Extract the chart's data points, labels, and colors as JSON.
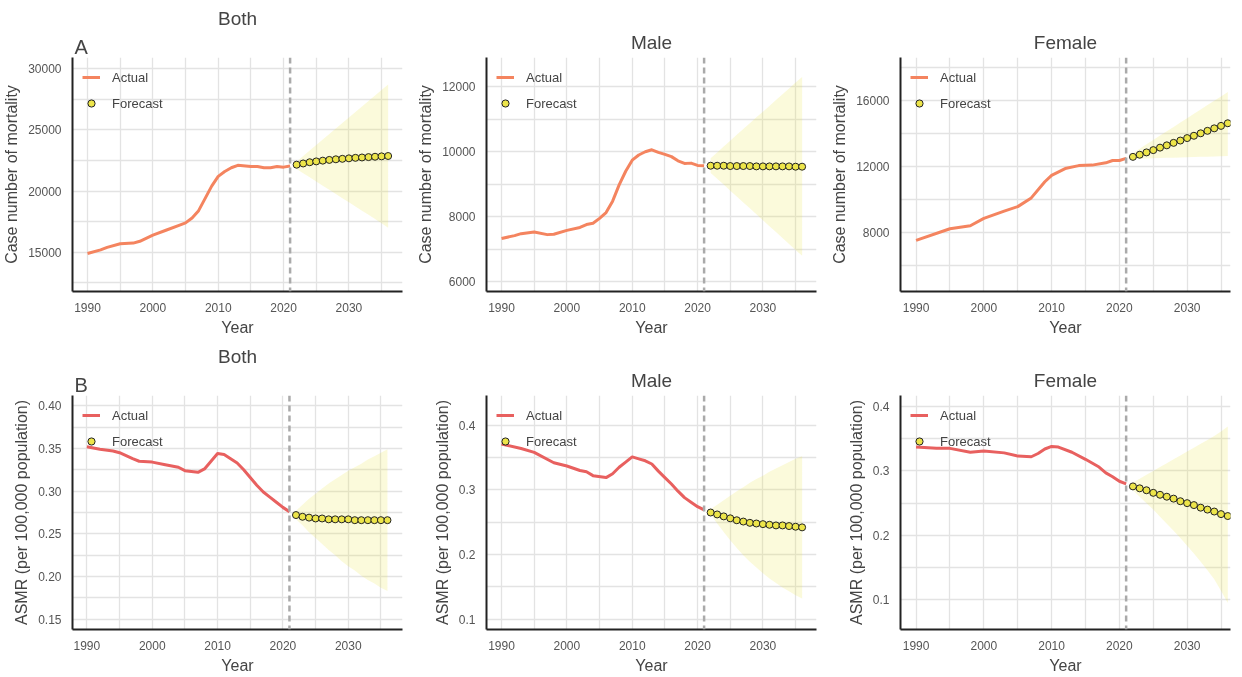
{
  "chart_data": [
    {
      "type": "line",
      "title": "Both",
      "xlabel": "Year",
      "ylabel": "Case number of mortality",
      "annotations": [
        "A"
      ],
      "grid": true,
      "legend": "top left",
      "xlim": [
        1987.7,
        2038.2
      ],
      "ylim": [
        11800,
        30900
      ],
      "xticks": [
        1990,
        {
          "value": 1995,
          "label": null
        },
        2000,
        {
          "value": 2005,
          "label": null
        },
        2010,
        {
          "value": 2015,
          "label": null
        },
        2020,
        {
          "value": 2025,
          "label": null
        },
        2030,
        {
          "value": 2035,
          "label": null
        }
      ],
      "yticks": [
        {
          "value": 12500,
          "label": null
        },
        15000,
        {
          "value": 17500,
          "label": null
        },
        20000,
        {
          "value": 22500,
          "label": null
        },
        25000,
        {
          "value": 27500,
          "label": null
        },
        30000
      ],
      "ref_lines": [
        {
          "axis": "x",
          "value": 2021,
          "color": "#aaaaaa",
          "line_style": "dashed"
        }
      ],
      "series": [
        {
          "name": "Actual",
          "color": "#f4845f",
          "x": [
            1990,
            1992,
            1993,
            1995,
            1997,
            1998,
            2000,
            2002,
            2004,
            2005,
            2006,
            2007,
            2008,
            2009,
            2010,
            2011,
            2012,
            2013,
            2015,
            2016,
            2017,
            2018,
            2019,
            2020,
            2021
          ],
          "values": [
            14900,
            15200,
            15400,
            15700,
            15750,
            15900,
            16400,
            16800,
            17200,
            17400,
            17800,
            18400,
            19400,
            20400,
            21200,
            21600,
            21900,
            22100,
            22000,
            22000,
            21900,
            21900,
            22000,
            21950,
            22050
          ]
        },
        {
          "name": "Forecast",
          "type": "scatter",
          "marker": "circle",
          "color": "#ede54a",
          "x": [
            2022,
            2023,
            2024,
            2025,
            2026,
            2027,
            2028,
            2029,
            2030,
            2031,
            2032,
            2033,
            2034,
            2035,
            2036
          ],
          "values": [
            22150,
            22250,
            22350,
            22420,
            22480,
            22540,
            22590,
            22630,
            22670,
            22710,
            22740,
            22770,
            22800,
            22830,
            22860
          ],
          "upper": [
            22400,
            22850,
            23300,
            23750,
            24200,
            24650,
            25100,
            25550,
            26000,
            26450,
            26900,
            27350,
            27800,
            28250,
            28700
          ],
          "lower": [
            21800,
            21460,
            21120,
            20780,
            20440,
            20100,
            19760,
            19420,
            19080,
            18740,
            18400,
            18060,
            17720,
            17380,
            17000
          ]
        }
      ]
    },
    {
      "type": "line",
      "title": "Male",
      "xlabel": "Year",
      "ylabel": "Case number of mortality",
      "grid": true,
      "legend": "top left",
      "xlim": [
        1987.7,
        2038.2
      ],
      "ylim": [
        5700,
        12900
      ],
      "xticks": [
        1990,
        {
          "value": 1995,
          "label": null
        },
        2000,
        {
          "value": 2005,
          "label": null
        },
        2010,
        {
          "value": 2015,
          "label": null
        },
        2020,
        {
          "value": 2025,
          "label": null
        },
        2030,
        {
          "value": 2035,
          "label": null
        }
      ],
      "yticks": [
        6000,
        {
          "value": 7000,
          "label": null
        },
        8000,
        {
          "value": 9000,
          "label": null
        },
        10000,
        {
          "value": 11000,
          "label": null
        },
        12000
      ],
      "ref_lines": [
        {
          "axis": "x",
          "value": 2021,
          "color": "#aaaaaa",
          "line_style": "dashed"
        }
      ],
      "series": [
        {
          "name": "Actual",
          "color": "#f4845f",
          "x": [
            1990,
            1992,
            1993,
            1995,
            1997,
            1998,
            2000,
            2002,
            2003,
            2004,
            2005,
            2006,
            2007,
            2008,
            2009,
            2010,
            2011,
            2012,
            2013,
            2014,
            2015,
            2016,
            2017,
            2018,
            2019,
            2020,
            2021
          ],
          "values": [
            7330,
            7420,
            7480,
            7530,
            7450,
            7460,
            7580,
            7670,
            7760,
            7800,
            7950,
            8130,
            8480,
            8980,
            9400,
            9740,
            9900,
            10000,
            10060,
            9980,
            9920,
            9850,
            9720,
            9640,
            9650,
            9580,
            9570
          ]
        },
        {
          "name": "Forecast",
          "type": "scatter",
          "marker": "circle",
          "color": "#ede54a",
          "x": [
            2022,
            2023,
            2024,
            2025,
            2026,
            2027,
            2028,
            2029,
            2030,
            2031,
            2032,
            2033,
            2034,
            2035,
            2036
          ],
          "values": [
            9570,
            9570,
            9570,
            9560,
            9560,
            9560,
            9560,
            9550,
            9550,
            9550,
            9550,
            9550,
            9550,
            9540,
            9540
          ],
          "upper": [
            9800,
            9980,
            10160,
            10340,
            10520,
            10700,
            10880,
            11060,
            11230,
            11410,
            11590,
            11770,
            11950,
            12130,
            12300
          ],
          "lower": [
            9350,
            9170,
            8990,
            8800,
            8620,
            8440,
            8260,
            8080,
            7890,
            7710,
            7530,
            7350,
            7160,
            6980,
            6800
          ]
        }
      ]
    },
    {
      "type": "line",
      "title": "Female",
      "xlabel": "Year",
      "ylabel": "Case number of mortality",
      "grid": true,
      "legend": "top left",
      "xlim": [
        1987.7,
        2036.4
      ],
      "ylim": [
        4400,
        18600
      ],
      "xticks": [
        1990,
        {
          "value": 1995,
          "label": null
        },
        2000,
        {
          "value": 2005,
          "label": null
        },
        2010,
        {
          "value": 2015,
          "label": null
        },
        2020,
        {
          "value": 2025,
          "label": null
        },
        2030,
        {
          "value": 2035,
          "label": null
        }
      ],
      "yticks": [
        {
          "value": 6000,
          "label": null
        },
        8000,
        {
          "value": 10000,
          "label": null
        },
        12000,
        {
          "value": 14000,
          "label": null
        },
        16000,
        {
          "value": 18000,
          "label": null
        }
      ],
      "ref_lines": [
        {
          "axis": "x",
          "value": 2021,
          "color": "#aaaaaa",
          "line_style": "dashed"
        }
      ],
      "series": [
        {
          "name": "Actual",
          "color": "#f4845f",
          "x": [
            1990,
            1995,
            1998,
            2000,
            2003,
            2005,
            2007,
            2009,
            2010,
            2012,
            2014,
            2016,
            2018,
            2019,
            2020,
            2021
          ],
          "values": [
            7500,
            8210,
            8390,
            8840,
            9280,
            9550,
            10080,
            11060,
            11450,
            11860,
            12040,
            12070,
            12210,
            12350,
            12350,
            12480
          ]
        },
        {
          "name": "Forecast",
          "type": "scatter",
          "marker": "circle",
          "color": "#ede54a",
          "x": [
            2022,
            2023,
            2024,
            2025,
            2026,
            2027,
            2028,
            2029,
            2030,
            2031,
            2032,
            2033,
            2034,
            2035,
            2036
          ],
          "values": [
            12570,
            12700,
            12840,
            12980,
            13130,
            13270,
            13420,
            13560,
            13710,
            13850,
            14000,
            14150,
            14300,
            14450,
            14610
          ],
          "upper": [
            12800,
            13060,
            13330,
            13590,
            13860,
            14120,
            14390,
            14650,
            14920,
            15180,
            15450,
            15710,
            15980,
            16240,
            16500
          ],
          "lower": [
            12450,
            12460,
            12470,
            12490,
            12500,
            12510,
            12520,
            12530,
            12550,
            12560,
            12570,
            12580,
            12590,
            12610,
            12620
          ]
        }
      ]
    },
    {
      "type": "line",
      "title": "Both",
      "xlabel": "Year",
      "ylabel": "ASMR (per 100,000 population)",
      "annotations": [
        "B"
      ],
      "grid": true,
      "legend": "top left",
      "xlim": [
        1987.8,
        2038.3
      ],
      "ylim": [
        0.138,
        0.412
      ],
      "xticks": [
        1990,
        {
          "value": 1995,
          "label": null
        },
        2000,
        {
          "value": 2005,
          "label": null
        },
        2010,
        {
          "value": 2015,
          "label": null
        },
        2020,
        {
          "value": 2025,
          "label": null
        },
        2030,
        {
          "value": 2035,
          "label": null
        }
      ],
      "yticks": [
        0.15,
        {
          "value": 0.175,
          "label": null
        },
        {
          "value": 0.2,
          "label": "0.20"
        },
        {
          "value": 0.225,
          "label": null
        },
        0.25,
        {
          "value": 0.275,
          "label": null
        },
        {
          "value": 0.3,
          "label": "0.30"
        },
        {
          "value": 0.325,
          "label": null
        },
        0.35,
        {
          "value": 0.375,
          "label": null
        },
        {
          "value": 0.4,
          "label": "0.40"
        }
      ],
      "ref_lines": [
        {
          "axis": "x",
          "value": 2021,
          "color": "#aaaaaa",
          "line_style": "dashed"
        }
      ],
      "series": [
        {
          "name": "Actual",
          "color": "#e8605f",
          "x": [
            1990,
            1992,
            1994,
            1995,
            1997,
            1998,
            2000,
            2002,
            2004,
            2005,
            2007,
            2008,
            2009,
            2010,
            2011,
            2012,
            2013,
            2014,
            2015,
            2016,
            2017,
            2018,
            2019,
            2020,
            2021
          ],
          "values": [
            0.352,
            0.349,
            0.347,
            0.345,
            0.338,
            0.335,
            0.334,
            0.331,
            0.328,
            0.324,
            0.322,
            0.326,
            0.335,
            0.344,
            0.343,
            0.338,
            0.333,
            0.325,
            0.316,
            0.307,
            0.299,
            0.293,
            0.287,
            0.281,
            0.276
          ]
        },
        {
          "name": "Forecast",
          "type": "scatter",
          "marker": "circle",
          "color": "#ede54a",
          "x": [
            2022,
            2023,
            2024,
            2025,
            2026,
            2027,
            2028,
            2029,
            2030,
            2031,
            2032,
            2033,
            2034,
            2035,
            2036
          ],
          "values": [
            0.272,
            0.27,
            0.269,
            0.268,
            0.268,
            0.267,
            0.267,
            0.267,
            0.267,
            0.266,
            0.266,
            0.266,
            0.266,
            0.266,
            0.266
          ],
          "upper": [
            0.277,
            0.284,
            0.291,
            0.297,
            0.303,
            0.309,
            0.314,
            0.319,
            0.324,
            0.328,
            0.332,
            0.337,
            0.341,
            0.345,
            0.349
          ],
          "lower": [
            0.267,
            0.26,
            0.252,
            0.245,
            0.238,
            0.231,
            0.225,
            0.218,
            0.212,
            0.207,
            0.201,
            0.196,
            0.192,
            0.187,
            0.183
          ]
        }
      ]
    },
    {
      "type": "line",
      "title": "Male",
      "xlabel": "Year",
      "ylabel": "ASMR (per 100,000 population)",
      "grid": true,
      "legend": "top left",
      "xlim": [
        1987.7,
        2038.2
      ],
      "ylim": [
        0.084,
        0.446
      ],
      "xticks": [
        1990,
        {
          "value": 1995,
          "label": null
        },
        2000,
        {
          "value": 2005,
          "label": null
        },
        2010,
        {
          "value": 2015,
          "label": null
        },
        2020,
        {
          "value": 2025,
          "label": null
        },
        2030,
        {
          "value": 2035,
          "label": null
        }
      ],
      "yticks": [
        0.1,
        {
          "value": 0.15,
          "label": null
        },
        0.2,
        {
          "value": 0.25,
          "label": null
        },
        0.3,
        {
          "value": 0.35,
          "label": null
        },
        0.4
      ],
      "ref_lines": [
        {
          "axis": "x",
          "value": 2021,
          "color": "#aaaaaa",
          "line_style": "dashed"
        }
      ],
      "series": [
        {
          "name": "Actual",
          "color": "#e8605f",
          "x": [
            1990,
            1993,
            1995,
            1998,
            2000,
            2002,
            2003,
            2004,
            2006,
            2007,
            2008,
            2009,
            2010,
            2011,
            2012,
            2013,
            2014,
            2015,
            2016,
            2017,
            2018,
            2019,
            2020,
            2021
          ],
          "values": [
            0.371,
            0.364,
            0.358,
            0.342,
            0.337,
            0.33,
            0.328,
            0.322,
            0.319,
            0.325,
            0.335,
            0.343,
            0.351,
            0.348,
            0.345,
            0.34,
            0.329,
            0.319,
            0.309,
            0.298,
            0.288,
            0.281,
            0.274,
            0.269
          ]
        },
        {
          "name": "Forecast",
          "type": "scatter",
          "marker": "circle",
          "color": "#ede54a",
          "x": [
            2022,
            2023,
            2024,
            2025,
            2026,
            2027,
            2028,
            2029,
            2030,
            2031,
            2032,
            2033,
            2034,
            2035,
            2036
          ],
          "values": [
            0.265,
            0.262,
            0.259,
            0.256,
            0.253,
            0.251,
            0.249,
            0.248,
            0.247,
            0.246,
            0.245,
            0.245,
            0.244,
            0.243,
            0.242
          ],
          "upper": [
            0.27,
            0.277,
            0.284,
            0.291,
            0.298,
            0.304,
            0.311,
            0.317,
            0.322,
            0.328,
            0.333,
            0.338,
            0.343,
            0.348,
            0.352
          ],
          "lower": [
            0.262,
            0.248,
            0.235,
            0.222,
            0.21,
            0.199,
            0.189,
            0.18,
            0.171,
            0.163,
            0.156,
            0.149,
            0.143,
            0.137,
            0.132
          ]
        }
      ]
    },
    {
      "type": "line",
      "title": "Female",
      "xlabel": "Year",
      "ylabel": "ASMR (per 100,000 population)",
      "grid": true,
      "legend": "top left",
      "xlim": [
        1987.7,
        2036.4
      ],
      "ylim": [
        0.054,
        0.417
      ],
      "xticks": [
        1990,
        {
          "value": 1995,
          "label": null
        },
        2000,
        {
          "value": 2005,
          "label": null
        },
        2010,
        {
          "value": 2015,
          "label": null
        },
        2020,
        {
          "value": 2025,
          "label": null
        },
        2030,
        {
          "value": 2035,
          "label": null
        }
      ],
      "yticks": [
        0.1,
        {
          "value": 0.15,
          "label": null
        },
        0.2,
        {
          "value": 0.25,
          "label": null
        },
        0.3,
        {
          "value": 0.35,
          "label": null
        },
        0.4
      ],
      "ref_lines": [
        {
          "axis": "x",
          "value": 2021,
          "color": "#aaaaaa",
          "line_style": "dashed"
        }
      ],
      "series": [
        {
          "name": "Actual",
          "color": "#e8605f",
          "x": [
            1990,
            1993,
            1995,
            1998,
            2000,
            2003,
            2005,
            2007,
            2008,
            2009,
            2010,
            2011,
            2013,
            2015,
            2017,
            2018,
            2019,
            2020,
            2021
          ],
          "values": [
            0.337,
            0.335,
            0.335,
            0.329,
            0.331,
            0.328,
            0.323,
            0.322,
            0.327,
            0.334,
            0.338,
            0.337,
            0.329,
            0.318,
            0.306,
            0.297,
            0.291,
            0.284,
            0.28
          ]
        },
        {
          "name": "Forecast",
          "type": "scatter",
          "marker": "circle",
          "color": "#ede54a",
          "x": [
            2022,
            2023,
            2024,
            2025,
            2026,
            2027,
            2028,
            2029,
            2030,
            2031,
            2032,
            2033,
            2034,
            2035,
            2036
          ],
          "values": [
            0.276,
            0.273,
            0.27,
            0.266,
            0.263,
            0.26,
            0.257,
            0.253,
            0.25,
            0.247,
            0.243,
            0.24,
            0.237,
            0.233,
            0.23
          ],
          "upper": [
            0.282,
            0.288,
            0.294,
            0.3,
            0.306,
            0.312,
            0.318,
            0.324,
            0.33,
            0.336,
            0.342,
            0.348,
            0.354,
            0.361,
            0.369
          ],
          "lower": [
            0.27,
            0.26,
            0.25,
            0.24,
            0.229,
            0.218,
            0.207,
            0.196,
            0.184,
            0.172,
            0.159,
            0.146,
            0.132,
            0.114,
            0.095
          ]
        }
      ]
    }
  ]
}
